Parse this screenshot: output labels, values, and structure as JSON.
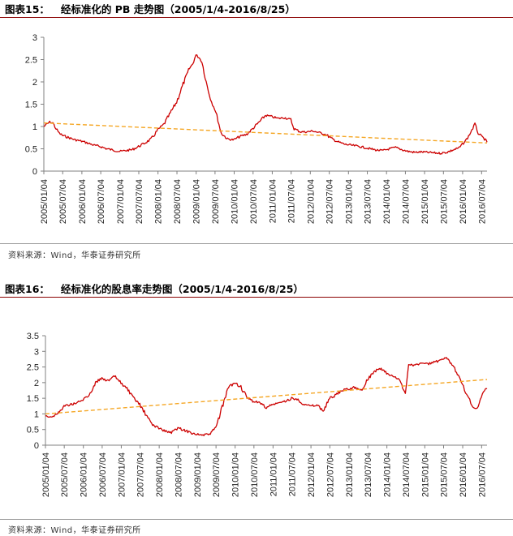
{
  "charts": [
    {
      "figure_number": "图表15：",
      "title": "经标准化的 PB 走势图（2005/1/4-2016/8/25）",
      "source": "资料来源：Wind，华泰证券研究所"
    },
    {
      "figure_number": "图表16：",
      "title": "经标准化的股息率走势图（2005/1/4-2016/8/25）",
      "source": "资料来源：Wind，华泰证券研究所"
    }
  ],
  "colors": {
    "series": "#cc0000",
    "trend": "#f5a623",
    "axis": "#808080",
    "title_rule": "#8b0000"
  },
  "chart_data": [
    {
      "type": "line",
      "x_type": "date",
      "xlim": [
        "2005-01-04",
        "2016-08-25"
      ],
      "x_tick_labels": [
        "2005/01/04",
        "2005/07/04",
        "2006/01/04",
        "2006/07/04",
        "2007/01/04",
        "2007/07/04",
        "2008/01/04",
        "2008/07/04",
        "2009/01/04",
        "2009/07/04",
        "2010/01/04",
        "2010/07/04",
        "2011/01/04",
        "2011/07/04",
        "2012/01/04",
        "2012/07/04",
        "2013/01/04",
        "2013/07/04",
        "2014/01/04",
        "2014/07/04",
        "2015/01/04",
        "2015/07/04",
        "2016/01/04",
        "2016/07/04"
      ],
      "y_ticks": [
        "0",
        "0.5",
        "1",
        "1.5",
        "2",
        "2.5",
        "3"
      ],
      "ylim": [
        0,
        3
      ],
      "grid": false,
      "series": [
        {
          "style": "solid",
          "points": [
            [
              "2005-01-04",
              1.0
            ],
            [
              "2005-02-01",
              1.05
            ],
            [
              "2005-03-01",
              1.1
            ],
            [
              "2005-04-01",
              1.08
            ],
            [
              "2005-05-01",
              0.95
            ],
            [
              "2005-06-01",
              0.85
            ],
            [
              "2005-07-01",
              0.8
            ],
            [
              "2005-09-01",
              0.75
            ],
            [
              "2005-11-01",
              0.7
            ],
            [
              "2006-01-01",
              0.67
            ],
            [
              "2006-03-01",
              0.63
            ],
            [
              "2006-05-01",
              0.58
            ],
            [
              "2006-07-01",
              0.55
            ],
            [
              "2006-09-01",
              0.5
            ],
            [
              "2006-11-01",
              0.47
            ],
            [
              "2007-01-01",
              0.44
            ],
            [
              "2007-03-01",
              0.46
            ],
            [
              "2007-05-01",
              0.48
            ],
            [
              "2007-07-01",
              0.55
            ],
            [
              "2007-09-01",
              0.63
            ],
            [
              "2007-11-01",
              0.72
            ],
            [
              "2008-01-01",
              0.92
            ],
            [
              "2008-03-01",
              1.05
            ],
            [
              "2008-05-01",
              1.3
            ],
            [
              "2008-07-01",
              1.55
            ],
            [
              "2008-09-01",
              1.95
            ],
            [
              "2008-11-01",
              2.3
            ],
            [
              "2008-12-01",
              2.4
            ],
            [
              "2009-01-01",
              2.6
            ],
            [
              "2009-02-01",
              2.55
            ],
            [
              "2009-03-01",
              2.45
            ],
            [
              "2009-04-01",
              2.1
            ],
            [
              "2009-05-01",
              1.8
            ],
            [
              "2009-06-01",
              1.55
            ],
            [
              "2009-07-01",
              1.4
            ],
            [
              "2009-08-01",
              1.15
            ],
            [
              "2009-09-01",
              0.85
            ],
            [
              "2009-11-01",
              0.72
            ],
            [
              "2010-01-01",
              0.7
            ],
            [
              "2010-03-01",
              0.78
            ],
            [
              "2010-05-01",
              0.82
            ],
            [
              "2010-07-01",
              0.95
            ],
            [
              "2010-09-01",
              1.1
            ],
            [
              "2010-11-01",
              1.25
            ],
            [
              "2011-01-01",
              1.22
            ],
            [
              "2011-03-01",
              1.18
            ],
            [
              "2011-05-01",
              1.2
            ],
            [
              "2011-07-01",
              1.15
            ],
            [
              "2011-08-01",
              0.95
            ],
            [
              "2011-10-01",
              0.88
            ],
            [
              "2011-12-01",
              0.88
            ],
            [
              "2012-02-01",
              0.9
            ],
            [
              "2012-04-01",
              0.86
            ],
            [
              "2012-06-01",
              0.82
            ],
            [
              "2012-08-01",
              0.72
            ],
            [
              "2012-10-01",
              0.65
            ],
            [
              "2012-12-01",
              0.6
            ],
            [
              "2013-02-01",
              0.58
            ],
            [
              "2013-04-01",
              0.56
            ],
            [
              "2013-06-01",
              0.53
            ],
            [
              "2013-08-01",
              0.5
            ],
            [
              "2013-10-01",
              0.47
            ],
            [
              "2013-12-01",
              0.46
            ],
            [
              "2014-02-01",
              0.5
            ],
            [
              "2014-04-01",
              0.53
            ],
            [
              "2014-06-01",
              0.48
            ],
            [
              "2014-08-01",
              0.44
            ],
            [
              "2014-10-01",
              0.42
            ],
            [
              "2014-12-01",
              0.43
            ],
            [
              "2015-02-01",
              0.42
            ],
            [
              "2015-04-01",
              0.41
            ],
            [
              "2015-06-01",
              0.4
            ],
            [
              "2015-08-01",
              0.42
            ],
            [
              "2015-10-01",
              0.47
            ],
            [
              "2015-12-01",
              0.52
            ],
            [
              "2016-01-01",
              0.6
            ],
            [
              "2016-02-01",
              0.68
            ],
            [
              "2016-03-01",
              0.78
            ],
            [
              "2016-04-01",
              0.92
            ],
            [
              "2016-05-01",
              1.05
            ],
            [
              "2016-06-01",
              0.85
            ],
            [
              "2016-07-01",
              0.78
            ],
            [
              "2016-08-01",
              0.72
            ],
            [
              "2016-08-25",
              0.65
            ]
          ]
        },
        {
          "style": "dashed",
          "points": [
            [
              "2005-01-04",
              1.08
            ],
            [
              "2016-08-25",
              0.63
            ]
          ]
        }
      ]
    },
    {
      "type": "line",
      "x_type": "date",
      "xlim": [
        "2005-01-04",
        "2016-08-25"
      ],
      "x_tick_labels": [
        "2005/01/04",
        "2005/07/04",
        "2006/01/04",
        "2006/07/04",
        "2007/01/04",
        "2007/07/04",
        "2008/01/04",
        "2008/07/04",
        "2009/01/04",
        "2009/07/04",
        "2010/01/04",
        "2010/07/04",
        "2011/01/04",
        "2011/07/04",
        "2012/01/04",
        "2012/07/04",
        "2013/01/04",
        "2013/07/04",
        "2014/01/04",
        "2014/07/04",
        "2015/01/04",
        "2015/07/04",
        "2016/01/04",
        "2016/07/04"
      ],
      "y_ticks": [
        "0",
        "0.5",
        "1",
        "1.5",
        "2",
        "2.5",
        "3",
        "3.5"
      ],
      "ylim": [
        0,
        3.5
      ],
      "grid": false,
      "series": [
        {
          "style": "solid",
          "points": [
            [
              "2005-01-04",
              0.95
            ],
            [
              "2005-03-01",
              0.9
            ],
            [
              "2005-05-01",
              1.0
            ],
            [
              "2005-07-01",
              1.25
            ],
            [
              "2005-09-01",
              1.3
            ],
            [
              "2005-11-01",
              1.35
            ],
            [
              "2006-01-01",
              1.45
            ],
            [
              "2006-03-01",
              1.6
            ],
            [
              "2006-05-01",
              2.0
            ],
            [
              "2006-07-01",
              2.15
            ],
            [
              "2006-09-01",
              2.05
            ],
            [
              "2006-11-01",
              2.2
            ],
            [
              "2007-01-01",
              2.0
            ],
            [
              "2007-03-01",
              1.8
            ],
            [
              "2007-05-01",
              1.5
            ],
            [
              "2007-07-01",
              1.3
            ],
            [
              "2007-09-01",
              0.95
            ],
            [
              "2007-11-01",
              0.65
            ],
            [
              "2008-01-01",
              0.55
            ],
            [
              "2008-03-01",
              0.45
            ],
            [
              "2008-05-01",
              0.4
            ],
            [
              "2008-07-01",
              0.55
            ],
            [
              "2008-09-01",
              0.48
            ],
            [
              "2008-11-01",
              0.4
            ],
            [
              "2009-01-01",
              0.35
            ],
            [
              "2009-03-01",
              0.32
            ],
            [
              "2009-05-01",
              0.35
            ],
            [
              "2009-07-01",
              0.55
            ],
            [
              "2009-09-01",
              1.2
            ],
            [
              "2009-11-01",
              1.85
            ],
            [
              "2010-01-01",
              2.0
            ],
            [
              "2010-03-01",
              1.85
            ],
            [
              "2010-05-01",
              1.5
            ],
            [
              "2010-07-01",
              1.4
            ],
            [
              "2010-09-01",
              1.35
            ],
            [
              "2010-11-01",
              1.2
            ],
            [
              "2011-01-01",
              1.3
            ],
            [
              "2011-03-01",
              1.35
            ],
            [
              "2011-05-01",
              1.4
            ],
            [
              "2011-07-01",
              1.5
            ],
            [
              "2011-09-01",
              1.45
            ],
            [
              "2011-11-01",
              1.3
            ],
            [
              "2012-01-01",
              1.25
            ],
            [
              "2012-03-01",
              1.28
            ],
            [
              "2012-05-01",
              1.1
            ],
            [
              "2012-07-01",
              1.5
            ],
            [
              "2012-09-01",
              1.6
            ],
            [
              "2012-11-01",
              1.75
            ],
            [
              "2013-01-01",
              1.8
            ],
            [
              "2013-03-01",
              1.85
            ],
            [
              "2013-05-01",
              1.75
            ],
            [
              "2013-07-01",
              2.1
            ],
            [
              "2013-09-01",
              2.35
            ],
            [
              "2013-11-01",
              2.45
            ],
            [
              "2014-01-01",
              2.3
            ],
            [
              "2014-03-01",
              2.2
            ],
            [
              "2014-05-01",
              2.1
            ],
            [
              "2014-07-01",
              1.65
            ],
            [
              "2014-08-01",
              2.6
            ],
            [
              "2014-10-01",
              2.55
            ],
            [
              "2014-12-01",
              2.62
            ],
            [
              "2015-02-01",
              2.6
            ],
            [
              "2015-04-01",
              2.65
            ],
            [
              "2015-06-01",
              2.7
            ],
            [
              "2015-08-01",
              2.78
            ],
            [
              "2015-10-01",
              2.55
            ],
            [
              "2015-12-01",
              2.2
            ],
            [
              "2016-01-01",
              1.95
            ],
            [
              "2016-03-01",
              1.5
            ],
            [
              "2016-04-01",
              1.3
            ],
            [
              "2016-05-01",
              1.15
            ],
            [
              "2016-06-01",
              1.25
            ],
            [
              "2016-07-01",
              1.55
            ],
            [
              "2016-08-01",
              1.75
            ],
            [
              "2016-08-25",
              1.8
            ]
          ]
        },
        {
          "style": "dashed",
          "points": [
            [
              "2005-01-04",
              1.0
            ],
            [
              "2016-08-25",
              2.1
            ]
          ]
        }
      ]
    }
  ]
}
